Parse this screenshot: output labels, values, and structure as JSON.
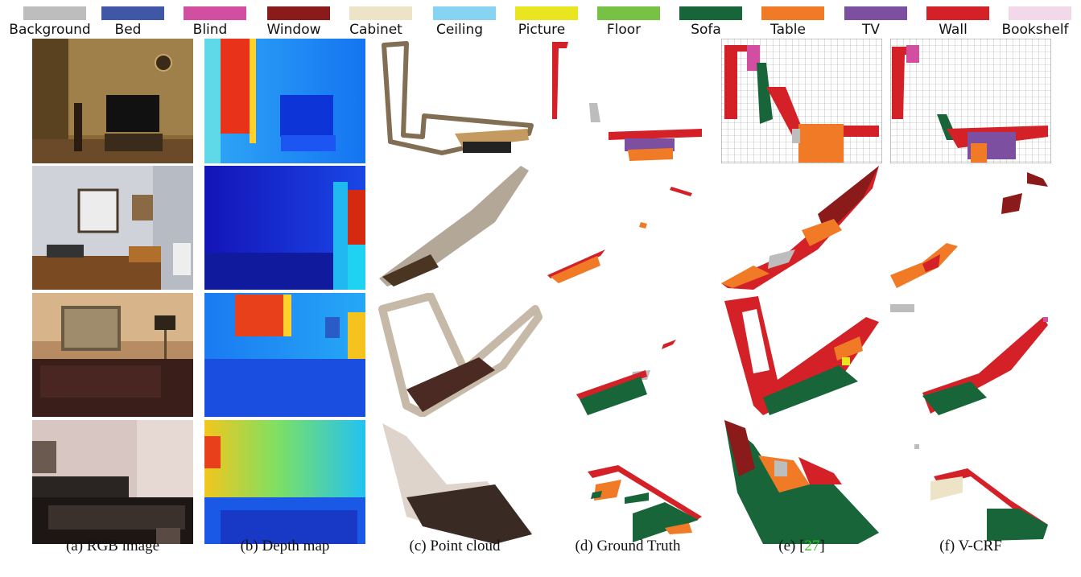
{
  "legend": [
    {
      "label": "Background",
      "color": "#bdbdbd"
    },
    {
      "label": "Bed",
      "color": "#3f57a6"
    },
    {
      "label": "Blind",
      "color": "#d24ea0"
    },
    {
      "label": "Window",
      "color": "#8b1a1a"
    },
    {
      "label": "Cabinet",
      "color": "#ede3c6"
    },
    {
      "label": "Ceiling",
      "color": "#87d3f2"
    },
    {
      "label": "Picture",
      "color": "#e9e61f"
    },
    {
      "label": "Floor",
      "color": "#77c244"
    },
    {
      "label": "Sofa",
      "color": "#19653a"
    },
    {
      "label": "Table",
      "color": "#f07a26"
    },
    {
      "label": "TV",
      "color": "#7c4fa0"
    },
    {
      "label": "Wall",
      "color": "#d42128"
    },
    {
      "label": "Bookshelf",
      "color": "#f3d8e9"
    }
  ],
  "captions": {
    "rgb": "(a) RGB image",
    "depth": "(b) Depth map",
    "pointcloud": "(c) Point cloud",
    "groundtruth": "(d) Ground Truth",
    "baseline_prefix": "(e) [",
    "baseline_ref": "27",
    "baseline_suffix": "]",
    "vcrf": "(f) V-CRF"
  }
}
